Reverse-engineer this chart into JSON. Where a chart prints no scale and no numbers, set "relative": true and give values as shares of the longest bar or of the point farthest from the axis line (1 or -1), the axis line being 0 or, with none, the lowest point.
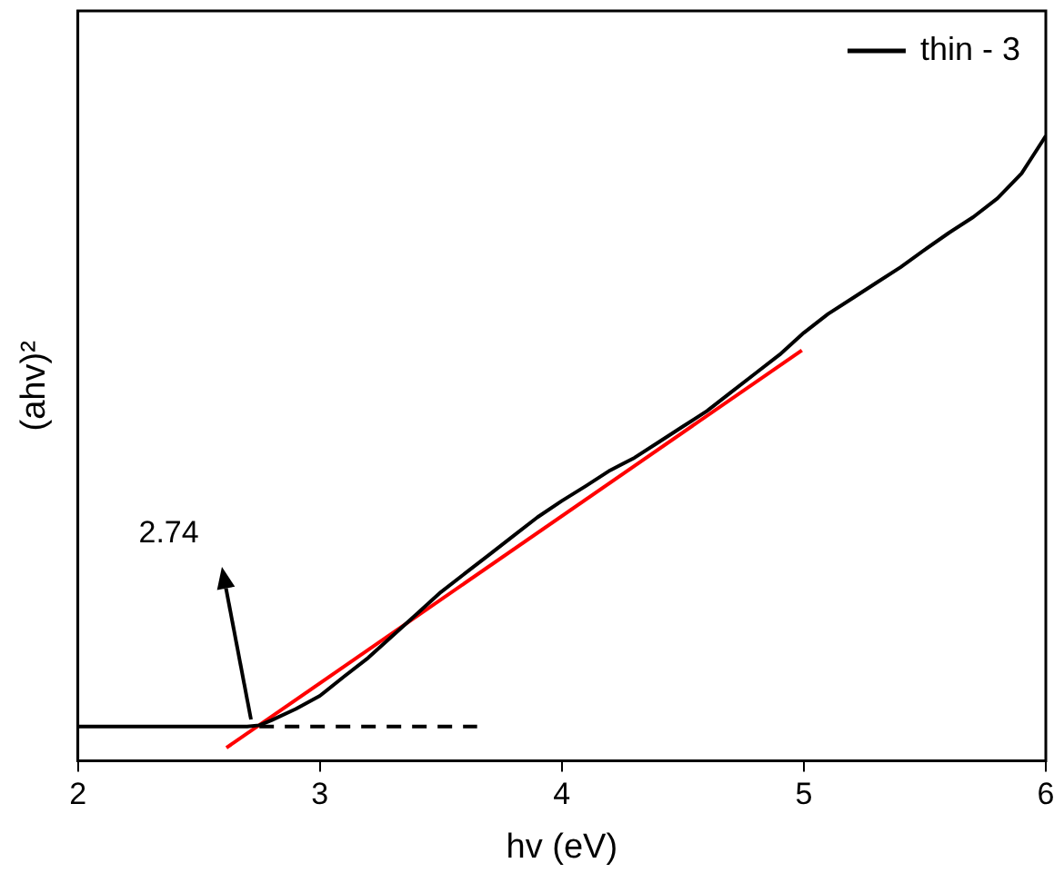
{
  "chart_data": {
    "type": "line",
    "xlabel": "hv (eV)",
    "ylabel": "(ahv)²",
    "relative": true,
    "xlim": [
      2,
      6
    ],
    "xticks": [
      2,
      3,
      4,
      5,
      6
    ],
    "legend": "top right",
    "marker": "none",
    "series": [
      {
        "name": "thin - 3",
        "color": "#000000",
        "x": [
          2.0,
          2.5,
          2.7,
          2.75,
          2.8,
          2.9,
          3.0,
          3.1,
          3.2,
          3.3,
          3.4,
          3.5,
          3.6,
          3.7,
          3.8,
          3.9,
          4.0,
          4.1,
          4.2,
          4.3,
          4.4,
          4.5,
          4.6,
          4.7,
          4.8,
          4.9,
          5.0,
          5.1,
          5.2,
          5.3,
          5.4,
          5.5,
          5.6,
          5.7,
          5.8,
          5.9,
          5.95,
          6.0
        ],
        "values": [
          0.055,
          0.055,
          0.055,
          0.057,
          0.065,
          0.083,
          0.104,
          0.135,
          0.165,
          0.2,
          0.235,
          0.27,
          0.3,
          0.33,
          0.36,
          0.39,
          0.416,
          0.44,
          0.465,
          0.485,
          0.51,
          0.535,
          0.56,
          0.59,
          0.62,
          0.65,
          0.685,
          0.715,
          0.74,
          0.765,
          0.79,
          0.818,
          0.845,
          0.87,
          0.9,
          0.94,
          0.97,
          1.0
        ]
      },
      {
        "color": "#ff0000",
        "x": [
          2.614,
          4.992
        ],
        "values": [
          0.021,
          0.657
        ]
      },
      {
        "color": "#000000",
        "line_style": "dashed",
        "x": [
          2.75,
          3.65
        ],
        "values": [
          0.055,
          0.055
        ]
      }
    ],
    "annotations": [
      "2.74"
    ]
  }
}
